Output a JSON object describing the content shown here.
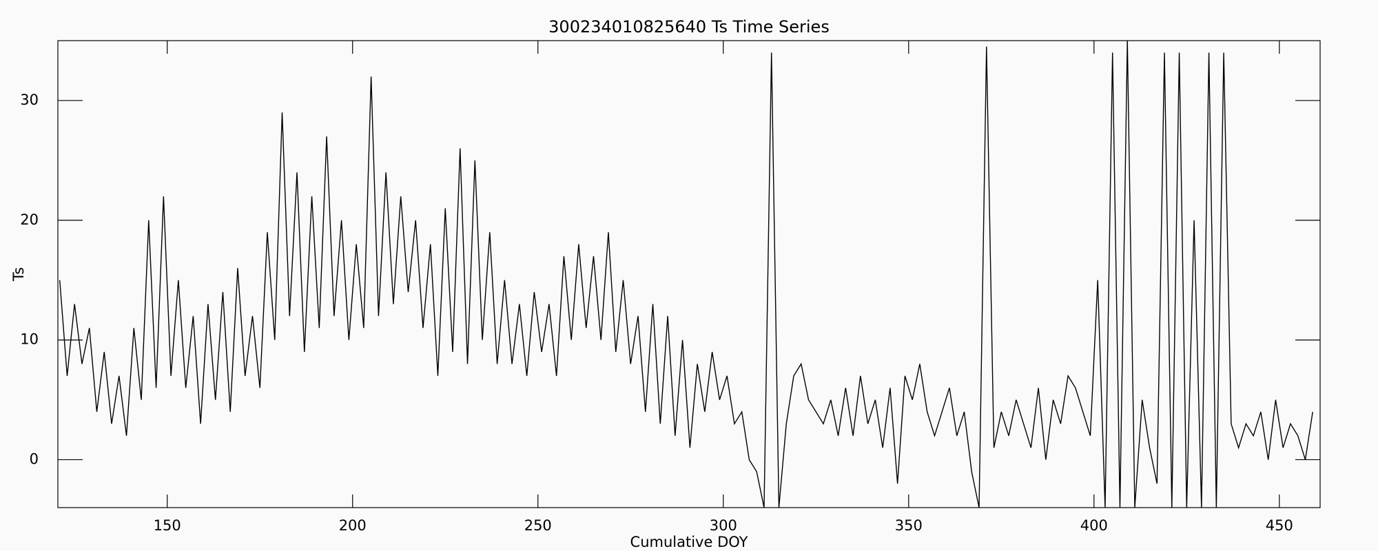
{
  "chart_data": {
    "type": "line",
    "title": "300234010825640 Ts Time Series",
    "x_label": "Cumulative DOY",
    "y_label": "Ts",
    "xlim": [
      120.5,
      461
    ],
    "ylim": [
      -4,
      35
    ],
    "xticks": [
      150,
      200,
      250,
      300,
      350,
      400,
      450
    ],
    "yticks": [
      0,
      10,
      20,
      30
    ],
    "series": [
      {
        "name": "Ts",
        "color": "#000000",
        "x": [
          121,
          123,
          125,
          127,
          129,
          131,
          133,
          135,
          137,
          139,
          141,
          143,
          145,
          147,
          149,
          151,
          153,
          155,
          157,
          159,
          161,
          163,
          165,
          167,
          169,
          171,
          173,
          175,
          177,
          179,
          181,
          183,
          185,
          187,
          189,
          191,
          193,
          195,
          197,
          199,
          201,
          203,
          205,
          207,
          209,
          211,
          213,
          215,
          217,
          219,
          221,
          223,
          225,
          227,
          229,
          231,
          233,
          235,
          237,
          239,
          241,
          243,
          245,
          247,
          249,
          251,
          253,
          255,
          257,
          259,
          261,
          263,
          265,
          267,
          269,
          271,
          273,
          275,
          277,
          279,
          281,
          283,
          285,
          287,
          289,
          291,
          293,
          295,
          297,
          299,
          301,
          303,
          305,
          307,
          309,
          311,
          313,
          315,
          317,
          319,
          321,
          323,
          325,
          327,
          329,
          331,
          333,
          335,
          337,
          339,
          341,
          343,
          345,
          347,
          349,
          351,
          353,
          355,
          357,
          359,
          361,
          363,
          365,
          367,
          369,
          371,
          373,
          375,
          377,
          379,
          381,
          383,
          385,
          387,
          389,
          391,
          393,
          395,
          397,
          399,
          401,
          403,
          405,
          407,
          409,
          411,
          413,
          415,
          417,
          419,
          421,
          423,
          425,
          427,
          429,
          431,
          433,
          435,
          437,
          439,
          441,
          443,
          445,
          447,
          449,
          451,
          453,
          455,
          457,
          459
        ],
        "values": [
          15,
          7,
          13,
          8,
          11,
          4,
          9,
          3,
          7,
          2,
          11,
          5,
          20,
          6,
          22,
          7,
          15,
          6,
          12,
          3,
          13,
          5,
          14,
          4,
          16,
          7,
          12,
          6,
          19,
          10,
          29,
          12,
          24,
          9,
          22,
          11,
          27,
          12,
          20,
          10,
          18,
          11,
          32,
          12,
          24,
          13,
          22,
          14,
          20,
          11,
          18,
          7,
          21,
          9,
          26,
          8,
          25,
          10,
          19,
          8,
          15,
          8,
          13,
          7,
          14,
          9,
          13,
          7,
          17,
          10,
          18,
          11,
          17,
          10,
          19,
          9,
          15,
          8,
          12,
          4,
          13,
          3,
          12,
          2,
          10,
          1,
          8,
          4,
          9,
          5,
          7,
          3,
          4,
          0,
          -1,
          -4,
          34,
          -4,
          3,
          7,
          8,
          5,
          4,
          3,
          5,
          2,
          6,
          2,
          7,
          3,
          5,
          1,
          6,
          -2,
          7,
          5,
          8,
          4,
          2,
          4,
          6,
          2,
          4,
          -1,
          -4,
          34.5,
          1,
          4,
          2,
          5,
          3,
          1,
          6,
          0,
          5,
          3,
          7,
          6,
          4,
          2,
          15,
          -4,
          34,
          -4,
          35,
          -4,
          5,
          1,
          -2,
          34,
          -4,
          34,
          -4,
          20,
          -4,
          34,
          -4,
          34,
          3,
          1,
          3,
          2,
          4,
          0,
          5,
          1,
          3,
          2,
          0,
          4
        ]
      }
    ]
  }
}
